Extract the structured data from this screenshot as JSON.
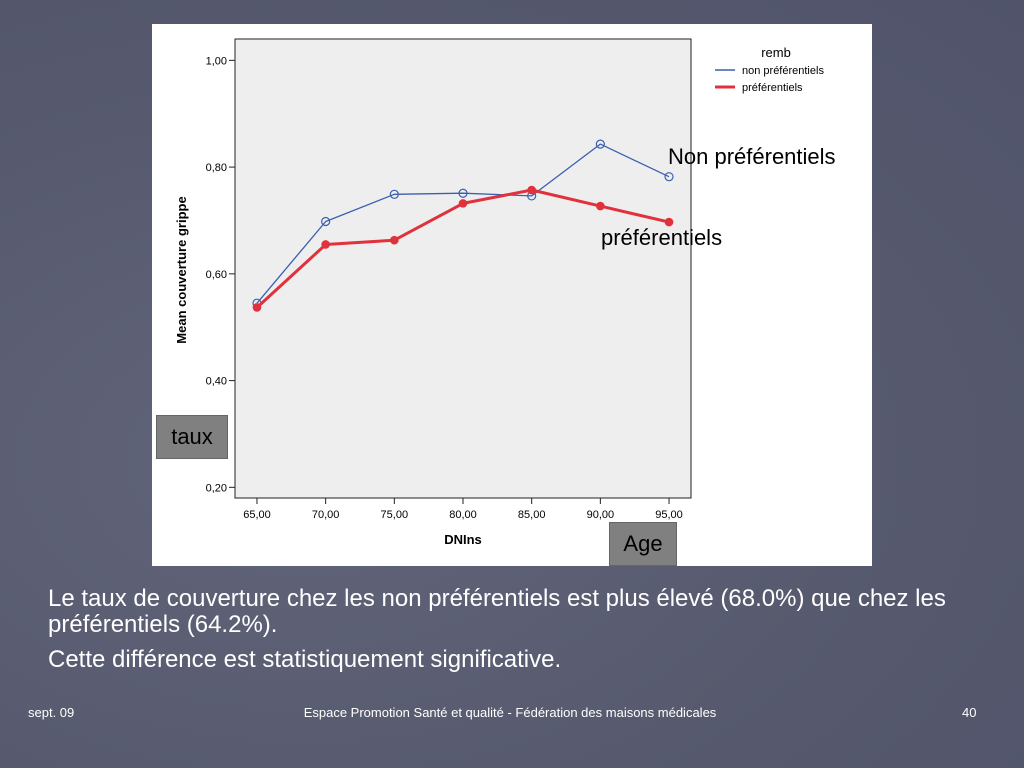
{
  "slide": {
    "callouts": {
      "taux": "taux",
      "age": "Age"
    },
    "caption_line1": "Le taux de couverture chez les non préférentiels est plus élevé (68.0%) que chez les préférentiels (64.2%).",
    "caption_line2": "Cette  différence est statistiquement significative.",
    "footer": {
      "date": "sept. 09",
      "center": "Espace Promotion Santé et qualité - Fédération des maisons médicales",
      "page": "40"
    }
  },
  "chart_data": {
    "type": "line",
    "xlabel": "DNIns",
    "ylabel": "Mean couverture grippe",
    "x": [
      65,
      70,
      75,
      80,
      85,
      90,
      95
    ],
    "x_tick_labels": [
      "65,00",
      "70,00",
      "75,00",
      "80,00",
      "85,00",
      "90,00",
      "95,00"
    ],
    "y_ticks": [
      0.2,
      0.4,
      0.6,
      0.8,
      1.0
    ],
    "y_tick_labels": [
      "0,20",
      "0,40",
      "0,60",
      "0,80",
      "1,00"
    ],
    "ylim": [
      0.18,
      1.04
    ],
    "xlim": [
      63.4,
      96.6
    ],
    "grid": false,
    "legend": {
      "title": "remb",
      "placement": "top-right"
    },
    "series": [
      {
        "name": "non préférentiels",
        "color": "#3a5fb0",
        "marker": "open-circle",
        "values": [
          0.545,
          0.698,
          0.749,
          0.751,
          0.746,
          0.843,
          0.782
        ]
      },
      {
        "name": "préférentiels",
        "color": "#e0313c",
        "marker": "filled-circle",
        "values": [
          0.537,
          0.655,
          0.663,
          0.732,
          0.757,
          0.727,
          0.697
        ]
      }
    ],
    "annotations": [
      "Non préférentiels",
      "préférentiels"
    ]
  }
}
